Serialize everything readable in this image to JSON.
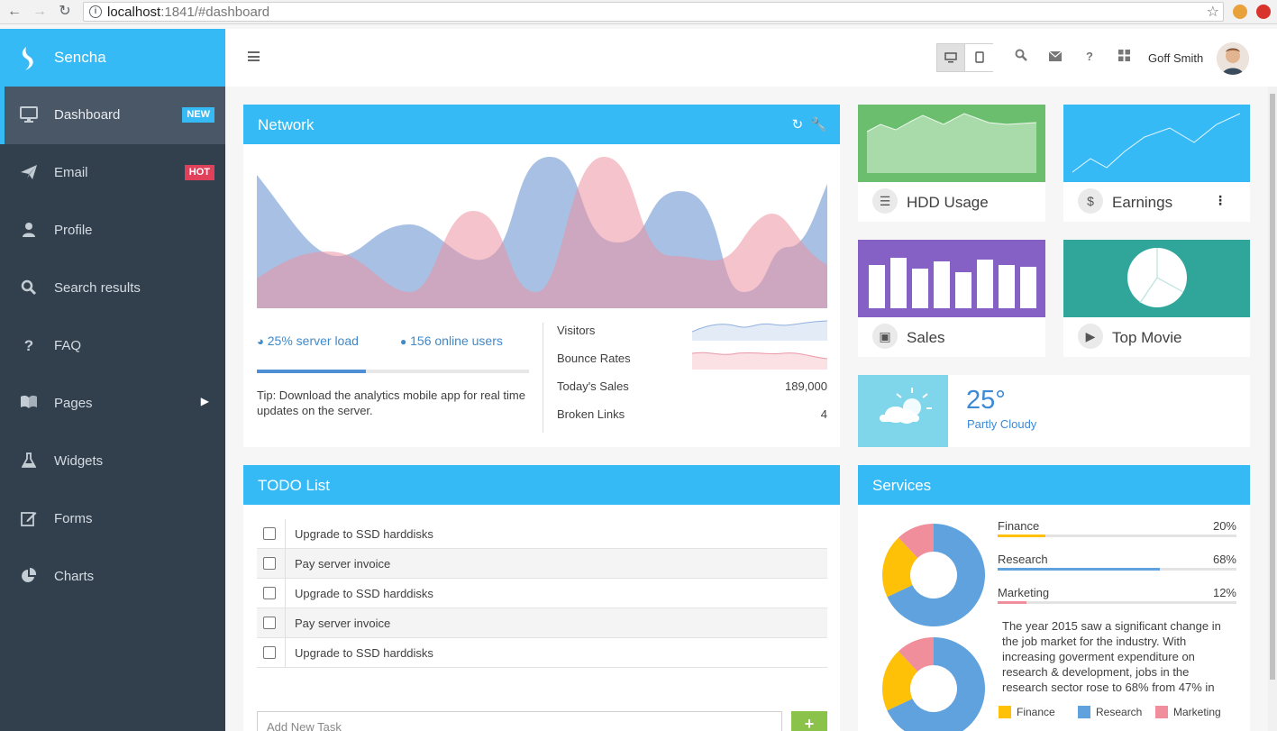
{
  "browser": {
    "url_host": "localhost",
    "url_rest": ":1841/#dashboard"
  },
  "brand": {
    "name": "Sencha"
  },
  "sidebar": {
    "items": [
      {
        "label": "Dashboard",
        "icon": "desktop-icon",
        "badge": "NEW"
      },
      {
        "label": "Email",
        "icon": "paper-plane-icon",
        "badge": "HOT"
      },
      {
        "label": "Profile",
        "icon": "user-icon"
      },
      {
        "label": "Search results",
        "icon": "search-icon"
      },
      {
        "label": "FAQ",
        "icon": "question-icon"
      },
      {
        "label": "Pages",
        "icon": "book-icon"
      },
      {
        "label": "Widgets",
        "icon": "flask-icon"
      },
      {
        "label": "Forms",
        "icon": "edit-icon"
      },
      {
        "label": "Charts",
        "icon": "pie-chart-icon"
      }
    ]
  },
  "header": {
    "user_name": "Goff Smith"
  },
  "network": {
    "title": "Network",
    "server_load": "25% server load",
    "online_users": "156 online users",
    "progress": 0.4,
    "tip": "Tip: Download the analytics mobile app for real time updates on the server.",
    "stats": [
      {
        "label": "Visitors",
        "value": ""
      },
      {
        "label": "Bounce Rates",
        "value": ""
      },
      {
        "label": "Today's Sales",
        "value": "189,000"
      },
      {
        "label": "Broken Links",
        "value": "4"
      }
    ]
  },
  "tiles": {
    "hdd": "HDD Usage",
    "earnings": "Earnings",
    "sales": "Sales",
    "top_movie": "Top Movie"
  },
  "weather": {
    "temp": "25°",
    "desc": "Partly Cloudy"
  },
  "todo": {
    "title": "TODO List",
    "items": [
      "Upgrade to SSD harddisks",
      "Pay server invoice",
      "Upgrade to SSD harddisks",
      "Pay server invoice",
      "Upgrade to SSD harddisks"
    ],
    "placeholder": "Add New Task",
    "add_label": "+"
  },
  "services": {
    "title": "Services",
    "rows": [
      {
        "label": "Finance",
        "pct": "20%",
        "value": 20,
        "color": "#ffc107"
      },
      {
        "label": "Research",
        "pct": "68%",
        "value": 68,
        "color": "#5fa2dd"
      },
      {
        "label": "Marketing",
        "pct": "12%",
        "value": 12,
        "color": "#f08e9b"
      }
    ],
    "text": "The year 2015 saw a significant change in the job market for the industry. With increasing goverment expenditure on research & development, jobs in the research sector rose to 68% from 47% in",
    "legend": [
      "Finance",
      "Research",
      "Marketing"
    ]
  },
  "colors": {
    "accent": "#35baf6",
    "sidebar": "#32404e",
    "hdd_tile": "#6abe6e",
    "sales_tile": "#8561c5",
    "movie_tile": "#30a69a",
    "weather_tile": "#7fd5ea"
  }
}
